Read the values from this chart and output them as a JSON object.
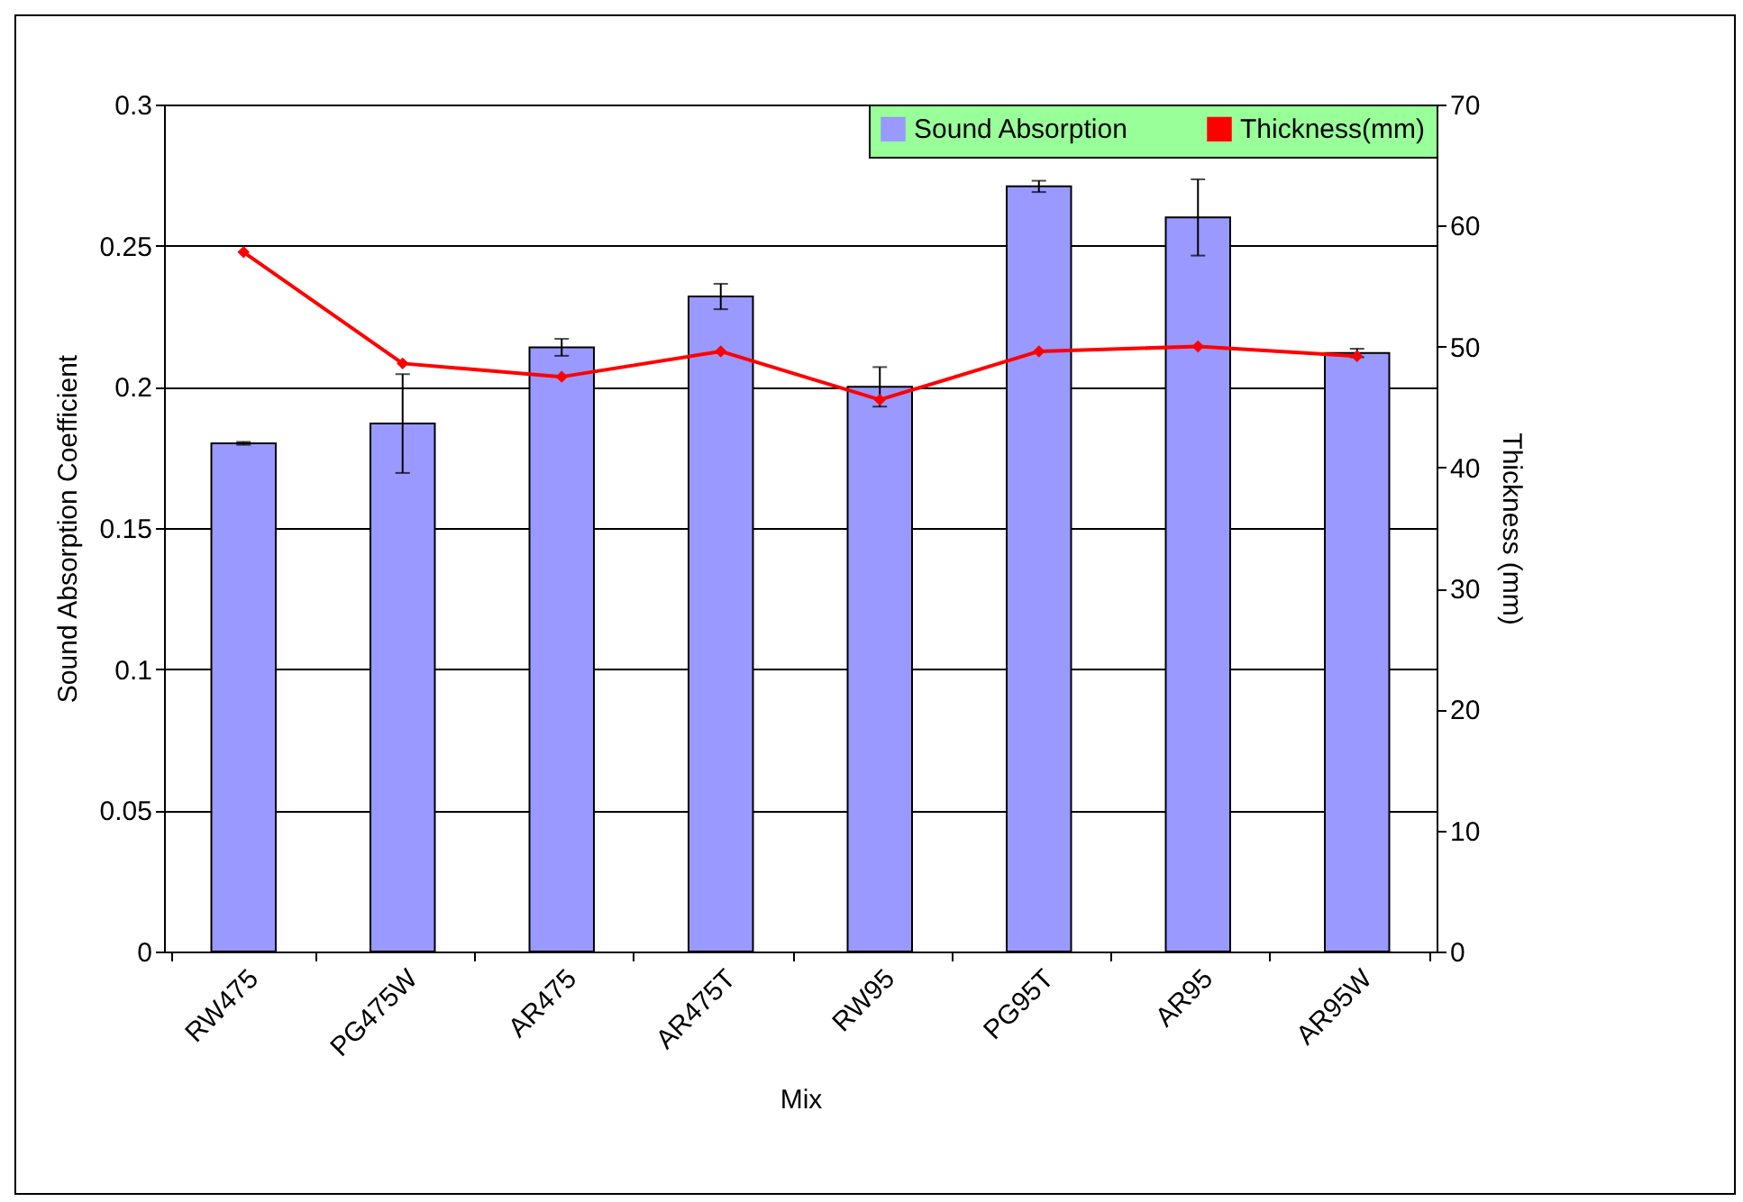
{
  "chart_data": {
    "type": "bar",
    "xlabel": "Mix",
    "ylabel": "Sound Absorption Coefficient",
    "y2label": "Thickness (mm)",
    "categories": [
      "RW475",
      "PG475W",
      "AR475",
      "AR475T",
      "RW95",
      "PG95T",
      "AR95",
      "AR95W"
    ],
    "series": [
      {
        "name": "Sound Absorption",
        "color": "#9999ff",
        "values": [
          0.18,
          0.187,
          0.214,
          0.232,
          0.2,
          0.271,
          0.26,
          0.212
        ],
        "errors": [
          0.0005,
          0.0175,
          0.003,
          0.0045,
          0.007,
          0.002,
          0.0135,
          0.0015
        ]
      },
      {
        "name": "Thickness(mm)",
        "type": "line",
        "axis": "y2",
        "color": "#ff0000",
        "values": [
          57.8,
          48.6,
          47.5,
          49.6,
          45.6,
          49.6,
          50.0,
          49.2
        ]
      }
    ],
    "ylim": [
      0,
      0.3
    ],
    "yticks": [
      0,
      0.05,
      0.1,
      0.15,
      0.2,
      0.25,
      0.3
    ],
    "y2lim": [
      0,
      70
    ],
    "y2ticks": [
      0,
      10,
      20,
      30,
      40,
      50,
      60,
      70
    ],
    "grid": "y",
    "legend": "top right",
    "marker": "diamond",
    "line_style": "solid"
  }
}
